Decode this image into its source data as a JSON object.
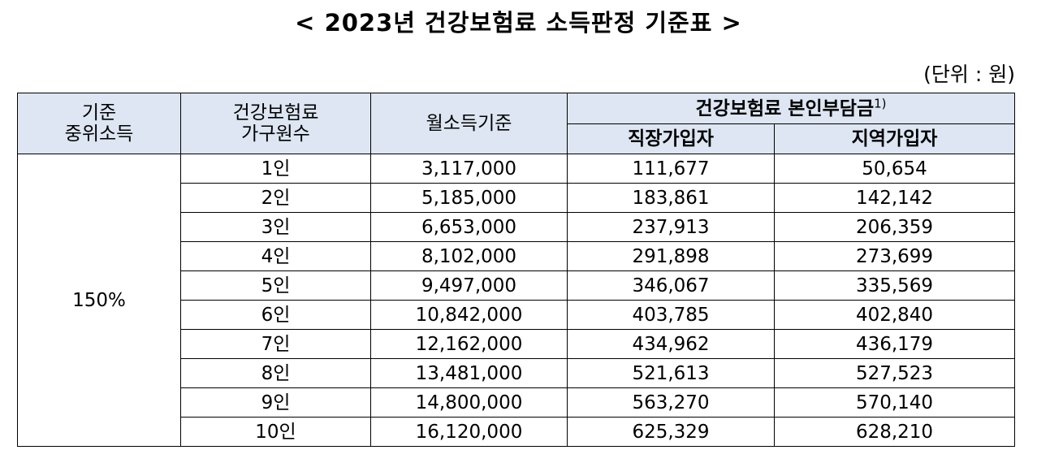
{
  "title": "< 2023년 건강보험료 소득판정 기준표 >",
  "unit": "(단위 : 원)",
  "header": {
    "col1": "기준\n중위소득",
    "col2": "건강보험료\n가구원수",
    "col3": "월소득기준",
    "col45_group": "건강보험료 본인부담금",
    "col45_footnote": "1)",
    "col4": "직장가입자",
    "col5": "지역가입자"
  },
  "median_income": "150%",
  "rows": [
    {
      "household": "1인",
      "monthly_income": "3,117,000",
      "employee": "111,677",
      "regional": "50,654"
    },
    {
      "household": "2인",
      "monthly_income": "5,185,000",
      "employee": "183,861",
      "regional": "142,142"
    },
    {
      "household": "3인",
      "monthly_income": "6,653,000",
      "employee": "237,913",
      "regional": "206,359"
    },
    {
      "household": "4인",
      "monthly_income": "8,102,000",
      "employee": "291,898",
      "regional": "273,699"
    },
    {
      "household": "5인",
      "monthly_income": "9,497,000",
      "employee": "346,067",
      "regional": "335,569"
    },
    {
      "household": "6인",
      "monthly_income": "10,842,000",
      "employee": "403,785",
      "regional": "402,840"
    },
    {
      "household": "7인",
      "monthly_income": "12,162,000",
      "employee": "434,962",
      "regional": "436,179"
    },
    {
      "household": "8인",
      "monthly_income": "13,481,000",
      "employee": "521,613",
      "regional": "527,523"
    },
    {
      "household": "9인",
      "monthly_income": "14,800,000",
      "employee": "563,270",
      "regional": "570,140"
    },
    {
      "household": "10인",
      "monthly_income": "16,120,000",
      "employee": "625,329",
      "regional": "628,210"
    }
  ]
}
